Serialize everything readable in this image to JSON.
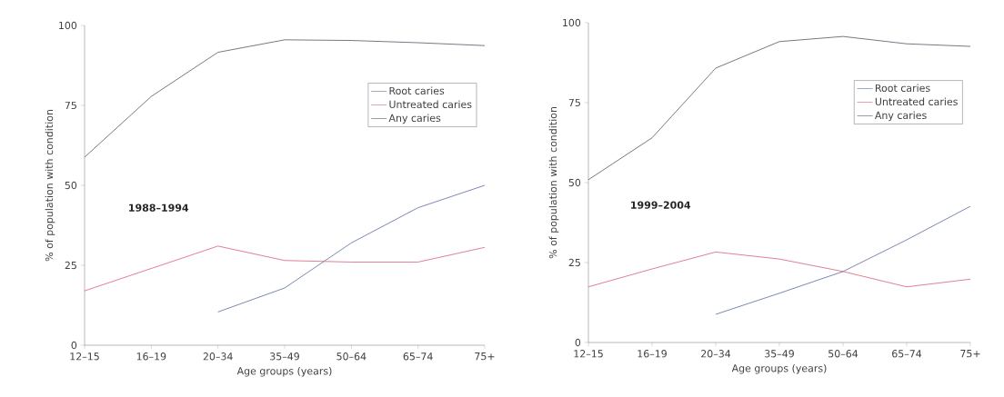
{
  "chart_data": [
    {
      "type": "line",
      "categories": [
        "12–15",
        "16–19",
        "20–34",
        "35–49",
        "50–64",
        "65–74",
        "75+"
      ],
      "xlabel": "Age groups (years)",
      "ylabel": "% of population with condition",
      "ylim": [
        0,
        100
      ],
      "yticks": [
        0,
        25,
        50,
        75,
        100
      ],
      "grid": false,
      "legend": "top right",
      "marker": "none",
      "line_style": "solid",
      "annotations": [
        "1988–1994"
      ],
      "series": [
        {
          "name": "Root caries",
          "color": "#5a6a9a",
          "values": [
            null,
            null,
            10.4,
            17.9,
            32,
            43,
            50
          ]
        },
        {
          "name": "Untreated caries",
          "color": "#d9607a",
          "values": [
            17,
            24,
            31,
            26.5,
            26,
            26,
            30.6
          ]
        },
        {
          "name": "Any caries",
          "color": "#555566",
          "values": [
            58.8,
            77.8,
            91.6,
            95.5,
            95.3,
            94.6,
            93.7
          ]
        }
      ]
    },
    {
      "type": "line",
      "categories": [
        "12–15",
        "16–19",
        "20–34",
        "35–49",
        "50–64",
        "65–74",
        "75+"
      ],
      "xlabel": "Age groups (years)",
      "ylabel": "% of population with condition",
      "ylim": [
        0,
        100
      ],
      "yticks": [
        0,
        25,
        50,
        75,
        100
      ],
      "grid": false,
      "legend": "top right",
      "marker": "none",
      "line_style": "solid",
      "annotations": [
        "1999–2004"
      ],
      "series": [
        {
          "name": "Root caries",
          "color": "#5a6a9a",
          "values": [
            null,
            null,
            8.8,
            15.4,
            22.2,
            32.1,
            42.6
          ]
        },
        {
          "name": "Untreated caries",
          "color": "#d9607a",
          "values": [
            17.4,
            23,
            28.3,
            26.1,
            22.2,
            17.4,
            19.8
          ]
        },
        {
          "name": "Any caries",
          "color": "#555566",
          "values": [
            50.9,
            64,
            85.8,
            94.1,
            95.7,
            93.4,
            92.6
          ]
        }
      ]
    }
  ]
}
